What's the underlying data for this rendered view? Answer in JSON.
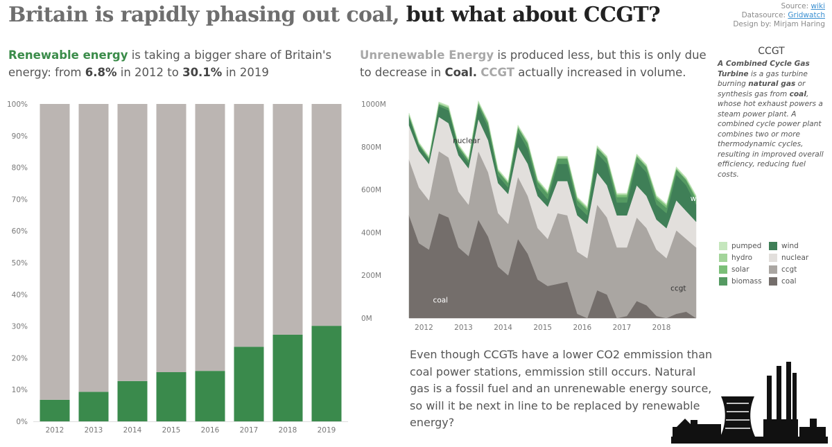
{
  "title": {
    "part1": "Britain is rapidly phasing out coal,",
    "part2": " but what about CCGT?"
  },
  "credits": {
    "source_prefix": "Source: ",
    "source_link": "wiki",
    "datasource_prefix": "Datasource: ",
    "datasource_link": "Gridwatch",
    "design": "Design by: Mirjam Haring"
  },
  "intro_left": {
    "highlight": "Renewable energy",
    "text1": " is taking a bigger share of Britain's energy: from ",
    "value_from": "6.8%",
    "text2": " in 2012 to ",
    "value_to": "30.1%",
    "text3": " in 2019"
  },
  "intro_right": {
    "highlight": "Unrenewable Energy",
    "text1": " is produced less, but this is only due to decrease in ",
    "coal": "Coal.",
    "text2": " ",
    "ccgt": "CCGT",
    "text3": " actually increased in volume."
  },
  "info": {
    "title": "CCGT",
    "text_a": "A Combined Cycle Gas Turbine",
    "text_b": " is a gas turbine burning ",
    "text_c": "natural gas",
    "text_d": " or synthesis gas from ",
    "text_e": "coal",
    "text_f": ", whose hot exhaust powers a steam power plant. A combined cycle power plant combines two or more thermodynamic cycles, resulting in improved overall efficiency, reducing fuel costs."
  },
  "legend": [
    {
      "label": "pumped",
      "color": "#c5e6bd"
    },
    {
      "label": "wind",
      "color": "#3f7f57"
    },
    {
      "label": "hydro",
      "color": "#a3d49a"
    },
    {
      "label": "nuclear",
      "color": "#e2dfdc"
    },
    {
      "label": "solar",
      "color": "#7bbf78"
    },
    {
      "label": "ccgt",
      "color": "#aaa6a2"
    },
    {
      "label": "biomass",
      "color": "#559a62"
    },
    {
      "label": "coal",
      "color": "#746e6b"
    }
  ],
  "closing_text": "Even though CCGTs have a lower CO2 emmission than coal power stations, emmission still occurs. Natural gas is a fossil fuel and an unrenewable energy source, so will it be next in line to be replaced by renewable energy?",
  "chart_data": [
    {
      "type": "bar",
      "stacked": true,
      "categories": [
        "2012",
        "2013",
        "2014",
        "2015",
        "2016",
        "2017",
        "2018",
        "2019"
      ],
      "series": [
        {
          "name": "renewable",
          "color": "#3a8a4c",
          "values": [
            6.8,
            9.3,
            12.7,
            15.5,
            15.9,
            23.5,
            27.3,
            30.1
          ]
        },
        {
          "name": "unrenewable",
          "color": "#bbb5b2",
          "values": [
            93.2,
            90.7,
            87.3,
            84.5,
            84.1,
            76.5,
            72.7,
            69.9
          ]
        }
      ],
      "ylim": [
        0,
        100
      ],
      "yticks": [
        "0%",
        "10%",
        "20%",
        "30%",
        "40%",
        "50%",
        "60%",
        "70%",
        "80%",
        "90%",
        "100%"
      ],
      "grid": false
    },
    {
      "type": "area",
      "stacked": true,
      "x_tick_labels": [
        "2012",
        "2013",
        "2014",
        "2015",
        "2016",
        "2017",
        "2018"
      ],
      "ylim": [
        0,
        1000
      ],
      "yticks": [
        "0M",
        "200M",
        "400M",
        "600M",
        "800M",
        "1000M"
      ],
      "period": "quarterly",
      "x_start": "2012 Q1",
      "series": [
        {
          "name": "coal",
          "color": "#746e6b",
          "values": [
            480,
            350,
            320,
            490,
            470,
            330,
            290,
            460,
            380,
            240,
            200,
            370,
            300,
            180,
            150,
            160,
            170,
            20,
            0,
            130,
            110,
            0,
            10,
            80,
            60,
            10,
            0,
            20,
            30,
            0
          ]
        },
        {
          "name": "ccgt",
          "color": "#aaa6a2",
          "values": [
            260,
            260,
            230,
            290,
            280,
            260,
            240,
            320,
            300,
            250,
            240,
            290,
            270,
            240,
            220,
            330,
            310,
            290,
            280,
            400,
            360,
            330,
            320,
            390,
            360,
            310,
            280,
            390,
            340,
            330
          ]
        },
        {
          "name": "nuclear",
          "color": "#e2dfdc",
          "values": [
            160,
            170,
            170,
            160,
            160,
            170,
            170,
            150,
            150,
            140,
            140,
            140,
            150,
            150,
            150,
            150,
            160,
            170,
            160,
            150,
            150,
            150,
            150,
            150,
            150,
            140,
            140,
            140,
            130,
            120
          ]
        },
        {
          "name": "wind",
          "color": "#3f7f57",
          "values": [
            40,
            25,
            20,
            50,
            60,
            30,
            25,
            60,
            60,
            35,
            30,
            70,
            70,
            40,
            35,
            80,
            80,
            45,
            40,
            90,
            100,
            60,
            60,
            110,
            110,
            70,
            70,
            120,
            120,
            80
          ]
        },
        {
          "name": "biomass",
          "color": "#559a62",
          "values": [
            8,
            8,
            8,
            10,
            12,
            12,
            12,
            15,
            20,
            20,
            20,
            22,
            25,
            25,
            25,
            25,
            25,
            25,
            25,
            25,
            25,
            25,
            25,
            25,
            25,
            25,
            25,
            25,
            25,
            25
          ]
        },
        {
          "name": "solar",
          "color": "#7bbf78",
          "values": [
            0,
            1,
            1,
            0,
            0,
            2,
            2,
            0,
            0,
            3,
            3,
            0,
            1,
            5,
            5,
            1,
            1,
            8,
            8,
            1,
            2,
            10,
            10,
            2,
            2,
            10,
            10,
            2,
            2,
            10
          ]
        },
        {
          "name": "hydro",
          "color": "#a3d49a",
          "values": [
            6,
            4,
            4,
            6,
            6,
            4,
            4,
            6,
            6,
            4,
            4,
            6,
            6,
            4,
            4,
            6,
            6,
            4,
            4,
            6,
            6,
            4,
            4,
            6,
            6,
            4,
            4,
            6,
            6,
            4
          ]
        },
        {
          "name": "pumped",
          "color": "#c5e6bd",
          "values": [
            4,
            4,
            4,
            4,
            4,
            4,
            4,
            4,
            4,
            4,
            4,
            4,
            4,
            4,
            4,
            4,
            4,
            4,
            4,
            4,
            4,
            4,
            4,
            4,
            4,
            4,
            4,
            4,
            4,
            4
          ]
        }
      ],
      "annotations": [
        {
          "text": "nuclear",
          "series": "nuclear"
        },
        {
          "text": "wind",
          "series": "wind"
        },
        {
          "text": "coal",
          "series": "coal"
        },
        {
          "text": "ccgt",
          "series": "ccgt"
        }
      ]
    }
  ]
}
